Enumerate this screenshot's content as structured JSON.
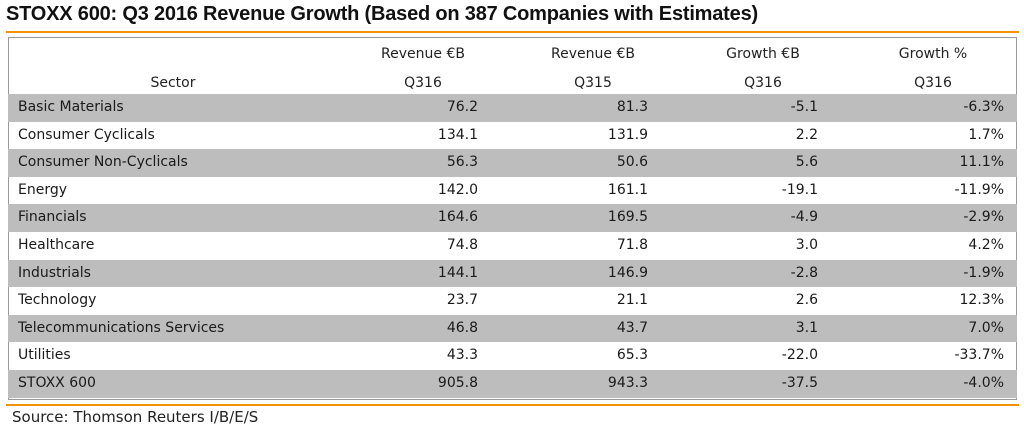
{
  "title": "STOXX 600: Q3 2016 Revenue Growth (Based on 387 Companies with Estimates)",
  "colors": {
    "accent_rule": "#f29100",
    "row_shade": "#bdbdbd"
  },
  "table": {
    "headers": {
      "sector": "Sector",
      "rev_q316_line1": "Revenue €B",
      "rev_q316_line2": "Q316",
      "rev_q315_line1": "Revenue €B",
      "rev_q315_line2": "Q315",
      "growth_eur_line1": "Growth €B",
      "growth_eur_line2": "Q316",
      "growth_pct_line1": "Growth %",
      "growth_pct_line2": "Q316"
    },
    "rows": [
      {
        "sector": "Basic Materials",
        "rev_q316": "76.2",
        "rev_q315": "81.3",
        "growth_eur": "-5.1",
        "growth_pct": "-6.3%"
      },
      {
        "sector": "Consumer Cyclicals",
        "rev_q316": "134.1",
        "rev_q315": "131.9",
        "growth_eur": "2.2",
        "growth_pct": "1.7%"
      },
      {
        "sector": "Consumer Non-Cyclicals",
        "rev_q316": "56.3",
        "rev_q315": "50.6",
        "growth_eur": "5.6",
        "growth_pct": "11.1%"
      },
      {
        "sector": "Energy",
        "rev_q316": "142.0",
        "rev_q315": "161.1",
        "growth_eur": "-19.1",
        "growth_pct": "-11.9%"
      },
      {
        "sector": "Financials",
        "rev_q316": "164.6",
        "rev_q315": "169.5",
        "growth_eur": "-4.9",
        "growth_pct": "-2.9%"
      },
      {
        "sector": "Healthcare",
        "rev_q316": "74.8",
        "rev_q315": "71.8",
        "growth_eur": "3.0",
        "growth_pct": "4.2%"
      },
      {
        "sector": "Industrials",
        "rev_q316": "144.1",
        "rev_q315": "146.9",
        "growth_eur": "-2.8",
        "growth_pct": "-1.9%"
      },
      {
        "sector": "Technology",
        "rev_q316": "23.7",
        "rev_q315": "21.1",
        "growth_eur": "2.6",
        "growth_pct": "12.3%"
      },
      {
        "sector": "Telecommunications Services",
        "rev_q316": "46.8",
        "rev_q315": "43.7",
        "growth_eur": "3.1",
        "growth_pct": "7.0%"
      },
      {
        "sector": "Utilities",
        "rev_q316": "43.3",
        "rev_q315": "65.3",
        "growth_eur": "-22.0",
        "growth_pct": "-33.7%"
      }
    ],
    "total": {
      "sector": "STOXX 600",
      "rev_q316": "905.8",
      "rev_q315": "943.3",
      "growth_eur": "-37.5",
      "growth_pct": "-4.0%"
    }
  },
  "source": "Source: Thomson Reuters I/B/E/S"
}
